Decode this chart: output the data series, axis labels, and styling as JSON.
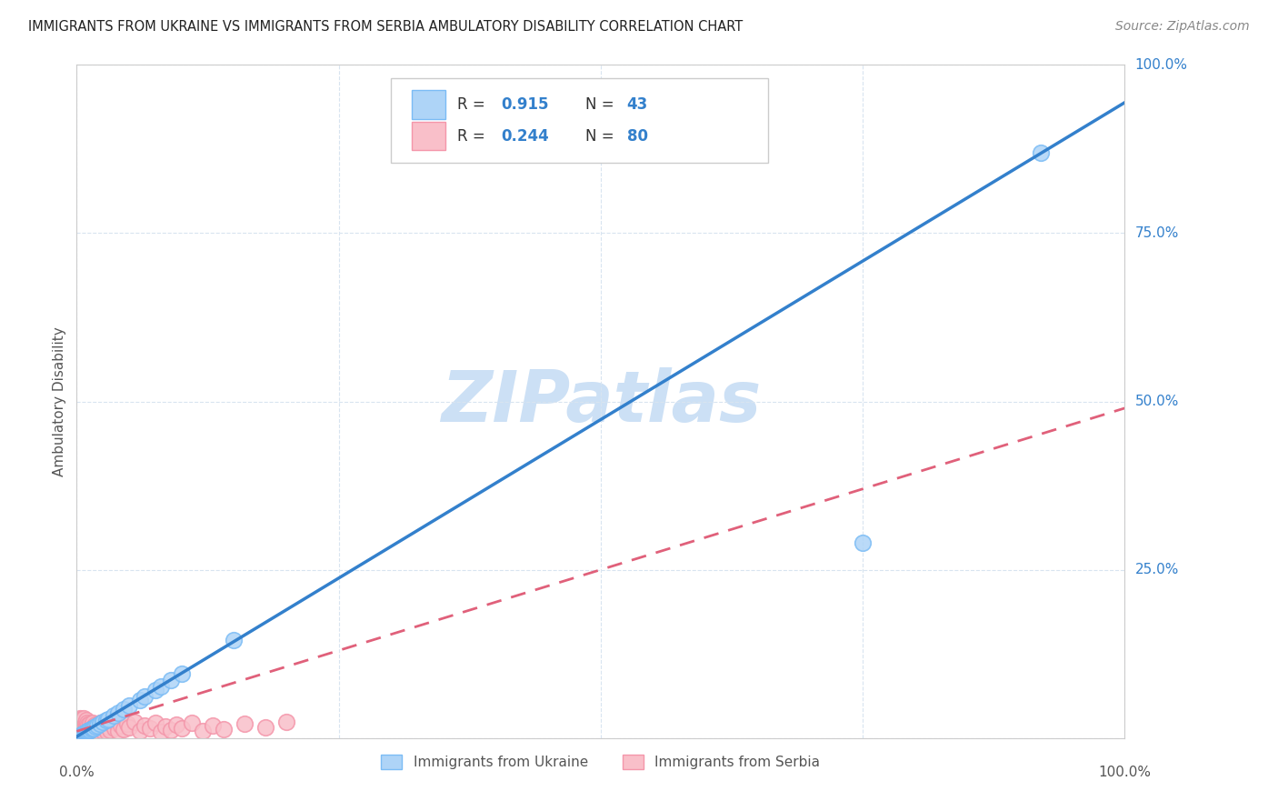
{
  "title": "IMMIGRANTS FROM UKRAINE VS IMMIGRANTS FROM SERBIA AMBULATORY DISABILITY CORRELATION CHART",
  "source": "Source: ZipAtlas.com",
  "ylabel": "Ambulatory Disability",
  "ukraine_R": 0.915,
  "ukraine_N": 43,
  "serbia_R": 0.244,
  "serbia_N": 80,
  "ukraine_color": "#7bbcf5",
  "ukraine_fill": "#aed4f7",
  "serbia_color": "#f496aa",
  "serbia_fill": "#f9bfc9",
  "ukraine_line_color": "#3380cc",
  "serbia_line_color": "#e0607a",
  "watermark_color": "#cce0f5",
  "background_color": "#ffffff",
  "ukraine_scatter_x": [
    0.001,
    0.002,
    0.003,
    0.003,
    0.004,
    0.004,
    0.005,
    0.005,
    0.006,
    0.006,
    0.007,
    0.007,
    0.008,
    0.008,
    0.009,
    0.009,
    0.01,
    0.01,
    0.011,
    0.012,
    0.013,
    0.014,
    0.015,
    0.016,
    0.018,
    0.02,
    0.022,
    0.025,
    0.028,
    0.03,
    0.035,
    0.04,
    0.045,
    0.05,
    0.06,
    0.065,
    0.075,
    0.08,
    0.09,
    0.1,
    0.15,
    0.75,
    0.92
  ],
  "ukraine_scatter_y": [
    0.001,
    0.002,
    0.003,
    0.002,
    0.003,
    0.004,
    0.004,
    0.005,
    0.005,
    0.006,
    0.006,
    0.007,
    0.007,
    0.008,
    0.008,
    0.009,
    0.009,
    0.01,
    0.011,
    0.012,
    0.012,
    0.013,
    0.014,
    0.015,
    0.017,
    0.019,
    0.021,
    0.024,
    0.027,
    0.028,
    0.033,
    0.038,
    0.043,
    0.048,
    0.057,
    0.062,
    0.071,
    0.076,
    0.086,
    0.095,
    0.145,
    0.29,
    0.87
  ],
  "serbia_scatter_x": [
    0.001,
    0.001,
    0.002,
    0.002,
    0.003,
    0.003,
    0.003,
    0.004,
    0.004,
    0.004,
    0.005,
    0.005,
    0.005,
    0.006,
    0.006,
    0.006,
    0.007,
    0.007,
    0.007,
    0.008,
    0.008,
    0.008,
    0.009,
    0.009,
    0.009,
    0.01,
    0.01,
    0.01,
    0.011,
    0.011,
    0.012,
    0.012,
    0.013,
    0.013,
    0.014,
    0.014,
    0.015,
    0.015,
    0.016,
    0.016,
    0.017,
    0.018,
    0.019,
    0.02,
    0.021,
    0.022,
    0.023,
    0.024,
    0.025,
    0.026,
    0.027,
    0.028,
    0.029,
    0.03,
    0.032,
    0.034,
    0.036,
    0.038,
    0.04,
    0.042,
    0.045,
    0.048,
    0.05,
    0.055,
    0.06,
    0.065,
    0.07,
    0.075,
    0.08,
    0.085,
    0.09,
    0.095,
    0.1,
    0.11,
    0.12,
    0.13,
    0.14,
    0.16,
    0.18,
    0.2
  ],
  "serbia_scatter_y": [
    0.015,
    0.022,
    0.008,
    0.025,
    0.012,
    0.018,
    0.03,
    0.01,
    0.02,
    0.028,
    0.007,
    0.015,
    0.024,
    0.009,
    0.017,
    0.026,
    0.011,
    0.019,
    0.029,
    0.008,
    0.016,
    0.023,
    0.01,
    0.018,
    0.027,
    0.006,
    0.014,
    0.022,
    0.009,
    0.02,
    0.007,
    0.016,
    0.011,
    0.021,
    0.008,
    0.019,
    0.012,
    0.023,
    0.009,
    0.017,
    0.014,
    0.02,
    0.01,
    0.018,
    0.013,
    0.022,
    0.008,
    0.016,
    0.011,
    0.019,
    0.015,
    0.023,
    0.009,
    0.017,
    0.012,
    0.02,
    0.014,
    0.022,
    0.01,
    0.018,
    0.013,
    0.021,
    0.016,
    0.024,
    0.011,
    0.019,
    0.014,
    0.022,
    0.009,
    0.017,
    0.012,
    0.02,
    0.015,
    0.023,
    0.01,
    0.018,
    0.013,
    0.021,
    0.016,
    0.024
  ],
  "ukraine_line_slope": 0.942,
  "ukraine_line_intercept": 0.002,
  "serbia_line_slope": 0.48,
  "serbia_line_intercept": 0.01
}
